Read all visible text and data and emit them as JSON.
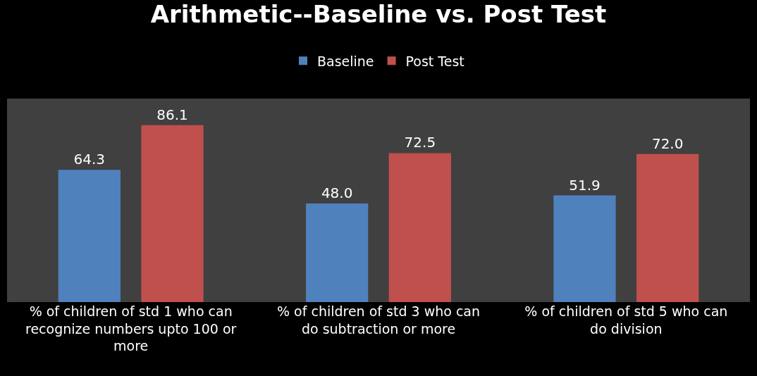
{
  "chart_data": {
    "type": "bar",
    "title": "Arithmetic--Baseline vs. Post Test",
    "categories": [
      "% of children of std 1 who can recognize numbers upto 100 or more",
      "% of children of std 3 who can do subtraction or more",
      "% of children of std 5 who can do division"
    ],
    "series": [
      {
        "name": "Baseline",
        "color": "#4f81bd",
        "values": [
          64.3,
          48.0,
          51.9
        ],
        "value_labels": [
          "64.3",
          "48.0",
          "51.9"
        ]
      },
      {
        "name": "Post Test",
        "color": "#c0504d",
        "values": [
          86.1,
          72.5,
          72.0
        ],
        "value_labels": [
          "86.1",
          "72.5",
          "72.0"
        ]
      }
    ],
    "legend": "top",
    "grid": false
  }
}
